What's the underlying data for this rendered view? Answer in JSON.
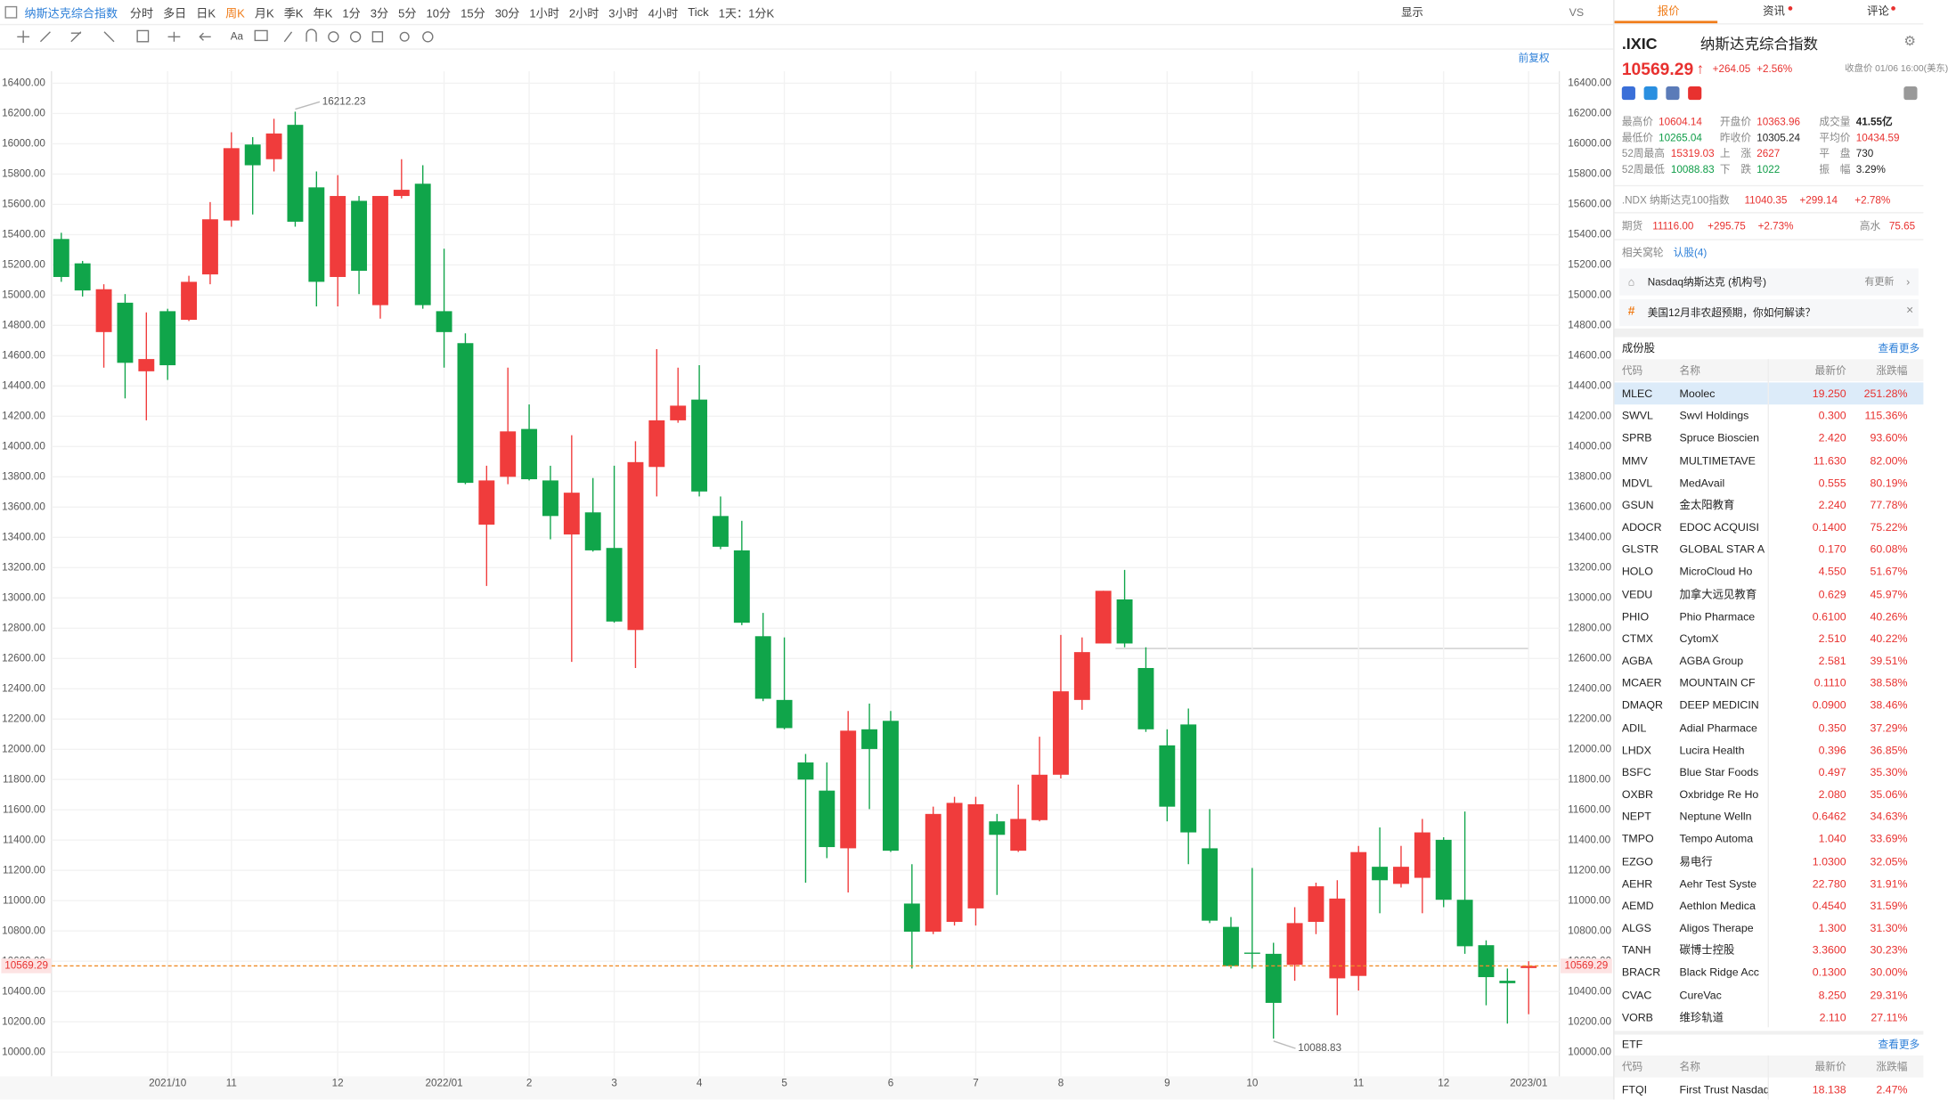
{
  "toolbar": {
    "instrument": "纳斯达克综合指数",
    "periods": [
      "分时",
      "多日",
      "日K",
      "周K",
      "月K",
      "季K",
      "年K",
      "1分",
      "3分",
      "5分",
      "10分",
      "15分",
      "30分",
      "1小时",
      "2小时",
      "3小时",
      "4小时",
      "Tick",
      "1天：1分K"
    ],
    "display": "显示",
    "vs": "VS",
    "adjust": "前复权"
  },
  "chart_data": {
    "type": "candlestick",
    "up_color": "#f03c3c",
    "down_color": "#10a54a",
    "grid": true,
    "categories": [
      null,
      null,
      null,
      null,
      null,
      "2021/10",
      null,
      null,
      "11",
      null,
      null,
      null,
      null,
      "12",
      null,
      null,
      null,
      null,
      "2022/01",
      null,
      null,
      null,
      "2",
      null,
      null,
      null,
      "3",
      null,
      null,
      null,
      "4",
      null,
      null,
      null,
      "5",
      null,
      null,
      null,
      null,
      "6",
      null,
      null,
      null,
      "7",
      null,
      null,
      null,
      "8",
      null,
      null,
      null,
      null,
      "9",
      null,
      null,
      null,
      "10",
      null,
      null,
      null,
      null,
      "11",
      null,
      null,
      null,
      "12",
      null,
      null,
      null,
      "2023/01"
    ],
    "open": [
      15371,
      15210,
      14756,
      14950,
      14497,
      14894,
      14837,
      15137,
      15493,
      15995,
      15898,
      16125,
      15712,
      15120,
      15623,
      14934,
      15655,
      15736,
      14894,
      14683,
      13484,
      13800,
      14116,
      13776,
      13419,
      13565,
      13330,
      12788,
      13865,
      14173,
      14310,
      13541,
      13314,
      12747,
      12326,
      11913,
      11727,
      11346,
      12132,
      12188,
      10981,
      10795,
      10860,
      10949,
      11524,
      11330,
      11532,
      11832,
      12326,
      12699,
      12990,
      12537,
      12026,
      12164,
      11346,
      10827,
      10657,
      10649,
      10576,
      10860,
      10487,
      10503,
      11224,
      11111,
      11151,
      11402,
      11006,
      10706,
      10471,
      10555
    ],
    "high": [
      15412,
      15226,
      15072,
      15007,
      14886,
      14910,
      15128,
      15615,
      16076,
      16044,
      16165,
      16212.23,
      15817,
      15793,
      15655,
      15655,
      15898,
      15858,
      15307,
      14748,
      13873,
      14521,
      14278,
      13873,
      14075,
      13792,
      13873,
      14035,
      14643,
      14521,
      14537,
      13670,
      13509,
      12901,
      12739,
      11969,
      11913,
      12253,
      12302,
      12253,
      11241,
      11621,
      11686,
      11686,
      11573,
      11767,
      12083,
      12755,
      12739,
      13047,
      13185,
      12674,
      12132,
      12269,
      11605,
      10892,
      11216,
      10722,
      10957,
      11119,
      11135,
      11362,
      11484,
      11362,
      11540,
      11419,
      11589,
      10738,
      10552,
      10600
    ],
    "low": [
      15088,
      14991,
      14521,
      14318,
      14173,
      14440,
      14829,
      15072,
      15452,
      15533,
      15817,
      15452,
      14926,
      14926,
      15007,
      14845,
      15639,
      14910,
      14521,
      13751,
      13079,
      13751,
      13776,
      13387,
      12577,
      13306,
      12836,
      12537,
      13670,
      14157,
      13670,
      13322,
      12820,
      12318,
      12132,
      11119,
      11281,
      11054,
      11605,
      11322,
      10552,
      10779,
      10836,
      10836,
      11038,
      11322,
      11524,
      11807,
      12261,
      12699,
      12674,
      12115,
      11524,
      11241,
      10852,
      10552,
      10552,
      10088.83,
      10471,
      10779,
      10244,
      10406,
      10917,
      11087,
      10917,
      10957,
      10649,
      10309,
      10188,
      10250
    ],
    "close": [
      15120,
      15031,
      15039,
      14553,
      14578,
      14537,
      15088,
      15501,
      15971,
      15858,
      16068,
      15485,
      15088,
      15655,
      15161,
      15655,
      15696,
      14934,
      14756,
      13760,
      13776,
      14100,
      13784,
      13541,
      13695,
      13314,
      12844,
      13897,
      14173,
      14270,
      13703,
      13338,
      12836,
      12334,
      12140,
      11800,
      11354,
      12123,
      12002,
      11330,
      10795,
      11573,
      11646,
      11637,
      11435,
      11540,
      11832,
      12383,
      12642,
      13047,
      12699,
      12132,
      11621,
      11451,
      10868,
      10568,
      10649,
      10325,
      10852,
      11095,
      11014,
      11321,
      11135,
      11224,
      11451,
      11006,
      10699,
      10495,
      10455,
      10569.29
    ],
    "last_price": 10569.29,
    "ylim": [
      9840,
      16480
    ],
    "yticks": [
      {
        "value": 10000,
        "label": "10000.00"
      },
      {
        "value": 10200,
        "label": "10200.00"
      },
      {
        "value": 10400,
        "label": "10400.00"
      },
      {
        "value": 10600,
        "label": "10600.00"
      },
      {
        "value": 10800,
        "label": "10800.00"
      },
      {
        "value": 11000,
        "label": "11000.00"
      },
      {
        "value": 11200,
        "label": "11200.00"
      },
      {
        "value": 11400,
        "label": "11400.00"
      },
      {
        "value": 11600,
        "label": "11600.00"
      },
      {
        "value": 11800,
        "label": "11800.00"
      },
      {
        "value": 12000,
        "label": "12000.00"
      },
      {
        "value": 12200,
        "label": "12200.00"
      },
      {
        "value": 12400,
        "label": "12400.00"
      },
      {
        "value": 12600,
        "label": "12600.00"
      },
      {
        "value": 12800,
        "label": "12800.00"
      },
      {
        "value": 13000,
        "label": "13000.00"
      },
      {
        "value": 13200,
        "label": "13200.00"
      },
      {
        "value": 13400,
        "label": "13400.00"
      },
      {
        "value": 13600,
        "label": "13600.00"
      },
      {
        "value": 13800,
        "label": "13800.00"
      },
      {
        "value": 14000,
        "label": "14000.00"
      },
      {
        "value": 14200,
        "label": "14200.00"
      },
      {
        "value": 14400,
        "label": "14400.00"
      },
      {
        "value": 14600,
        "label": "14600.00"
      },
      {
        "value": 14800,
        "label": "14800.00"
      },
      {
        "value": 15000,
        "label": "15000.00"
      },
      {
        "value": 15200,
        "label": "15200.00"
      },
      {
        "value": 15400,
        "label": "15400.00"
      },
      {
        "value": 15600,
        "label": "15600.00"
      },
      {
        "value": 15800,
        "label": "15800.00"
      },
      {
        "value": 16000,
        "label": "16000.00"
      },
      {
        "value": 16200,
        "label": "16200.00"
      },
      {
        "value": 16400,
        "label": "16400.00"
      }
    ]
  },
  "panel": {
    "tabs": [
      "报价",
      "资讯",
      "评论"
    ],
    "symbol": ".IXIC",
    "name": "纳斯达克综合指数",
    "price": "10569.29",
    "change": "+264.05",
    "change_pct": "+2.56%",
    "close_time": "收盘价 01/06 16:00(美东)",
    "stats": [
      [
        "最高价",
        "10604.14",
        "开盘价",
        "10363.96",
        "成交量",
        "41.55亿"
      ],
      [
        "最低价",
        "10265.04",
        "昨收价",
        "10305.24",
        "平均价",
        "10434.59"
      ],
      [
        "52周最高",
        "15319.03",
        "上　涨",
        "2627",
        "平　盘",
        "730"
      ],
      [
        "52周最低",
        "10088.83",
        "下　跌",
        "1022",
        "振　幅",
        "3.29%"
      ]
    ],
    "ndx": {
      "label": ".NDX 纳斯达克100指数",
      "price": "11040.35",
      "change": "+299.14",
      "change_pct": "+2.78%"
    },
    "futures": {
      "label": "期货",
      "price": "11116.00",
      "change": "+295.75",
      "change_pct": "+2.73%",
      "premium_label": "高水",
      "premium": "75.65"
    },
    "warrants": {
      "label": "相关窝轮",
      "link": "认股(4)"
    },
    "account": {
      "name": "Nasdaq纳斯达克 (机构号)",
      "status": "有更新"
    },
    "topic": "美国12月非农超预期，你如何解读？",
    "constituents": {
      "title": "成份股",
      "more": "查看更多",
      "headers": [
        "代码",
        "名称",
        "最新价",
        "涨跌幅"
      ],
      "rows": [
        [
          "MLEC",
          "Moolec",
          "19.250",
          "251.28%"
        ],
        [
          "SWVL",
          "Swvl Holdings",
          "0.300",
          "115.36%"
        ],
        [
          "SPRB",
          "Spruce Bioscien",
          "2.420",
          "93.60%"
        ],
        [
          "MMV",
          "MULTIMETAVE",
          "11.630",
          "82.00%"
        ],
        [
          "MDVL",
          "MedAvail",
          "0.555",
          "80.19%"
        ],
        [
          "GSUN",
          "金太阳教育",
          "2.240",
          "77.78%"
        ],
        [
          "ADOCR",
          "EDOC ACQUISI",
          "0.1400",
          "75.22%"
        ],
        [
          "GLSTR",
          "GLOBAL STAR A",
          "0.170",
          "60.08%"
        ],
        [
          "HOLO",
          "MicroCloud Ho",
          "4.550",
          "51.67%"
        ],
        [
          "VEDU",
          "加拿大远见教育",
          "0.629",
          "45.97%"
        ],
        [
          "PHIO",
          "Phio Pharmace",
          "0.6100",
          "40.26%"
        ],
        [
          "CTMX",
          "CytomX",
          "2.510",
          "40.22%"
        ],
        [
          "AGBA",
          "AGBA Group",
          "2.581",
          "39.51%"
        ],
        [
          "MCAER",
          "MOUNTAIN CF",
          "0.1110",
          "38.58%"
        ],
        [
          "DMAQR",
          "DEEP MEDICIN",
          "0.0900",
          "38.46%"
        ],
        [
          "ADIL",
          "Adial Pharmace",
          "0.350",
          "37.29%"
        ],
        [
          "LHDX",
          "Lucira Health",
          "0.396",
          "36.85%"
        ],
        [
          "BSFC",
          "Blue Star Foods",
          "0.497",
          "35.30%"
        ],
        [
          "OXBR",
          "Oxbridge Re Ho",
          "2.080",
          "35.06%"
        ],
        [
          "NEPT",
          "Neptune Welln",
          "0.6462",
          "34.63%"
        ],
        [
          "TMPO",
          "Tempo Automa",
          "1.040",
          "33.69%"
        ],
        [
          "EZGO",
          "易电行",
          "1.0300",
          "32.05%"
        ],
        [
          "AEHR",
          "Aehr Test Syste",
          "22.780",
          "31.91%"
        ],
        [
          "AEMD",
          "Aethlon Medica",
          "0.4540",
          "31.59%"
        ],
        [
          "ALGS",
          "Aligos Therape",
          "1.300",
          "31.30%"
        ],
        [
          "TANH",
          "碳博士控股",
          "3.3600",
          "30.23%"
        ],
        [
          "BRACR",
          "Black Ridge Acc",
          "0.1300",
          "30.00%"
        ],
        [
          "CVAC",
          "CureVac",
          "8.250",
          "29.31%"
        ],
        [
          "VORB",
          "维珍轨道",
          "2.110",
          "27.11%"
        ]
      ]
    },
    "etf": {
      "title": "ETF",
      "more": "查看更多",
      "headers": [
        "代码",
        "名称",
        "最新价",
        "涨跌幅"
      ],
      "rows": [
        [
          "FTQI",
          "First Trust Nasdaq",
          "18.138",
          "2.47%"
        ]
      ]
    }
  }
}
